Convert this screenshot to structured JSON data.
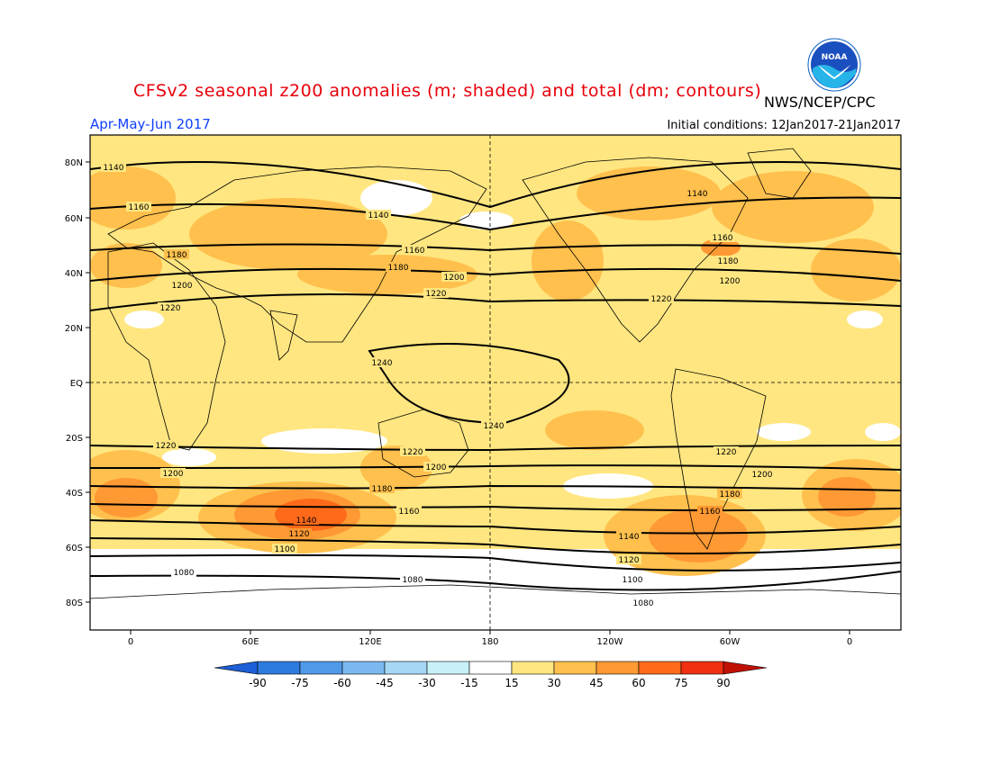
{
  "header": {
    "title": "CFSv2 seasonal z200 anomalies (m; shaded) and total (dm; contours)",
    "season": "Apr-May-Jun 2017",
    "agency": "NWS/NCEP/CPC",
    "initial_conditions": "Initial conditions: 12Jan2017-21Jan2017",
    "logo_text": "NOAA"
  },
  "axes": {
    "lat_labels": [
      "80N",
      "60N",
      "40N",
      "20N",
      "EQ",
      "20S",
      "40S",
      "60S",
      "80S"
    ],
    "lon_labels": [
      "0",
      "60E",
      "120E",
      "180",
      "120W",
      "60W",
      "0"
    ]
  },
  "contour_labels": [
    "1080",
    "1100",
    "1120",
    "1140",
    "1160",
    "1180",
    "1200",
    "1220",
    "1240"
  ],
  "colorbar": {
    "ticks": [
      "-90",
      "-75",
      "-60",
      "-45",
      "-30",
      "-15",
      "15",
      "30",
      "45",
      "60",
      "75",
      "90"
    ],
    "colors": [
      "#1d5fd6",
      "#2e7be0",
      "#4f99e8",
      "#7bb8f0",
      "#a6d8f5",
      "#c8f0f8",
      "#ffffff",
      "#ffe680",
      "#ffc04d",
      "#ff9933",
      "#ff6a1a",
      "#f03010",
      "#c01005"
    ]
  },
  "colors": {
    "title": "#e8000b",
    "season": "#1040ff",
    "base_fill": "#ffe680"
  }
}
